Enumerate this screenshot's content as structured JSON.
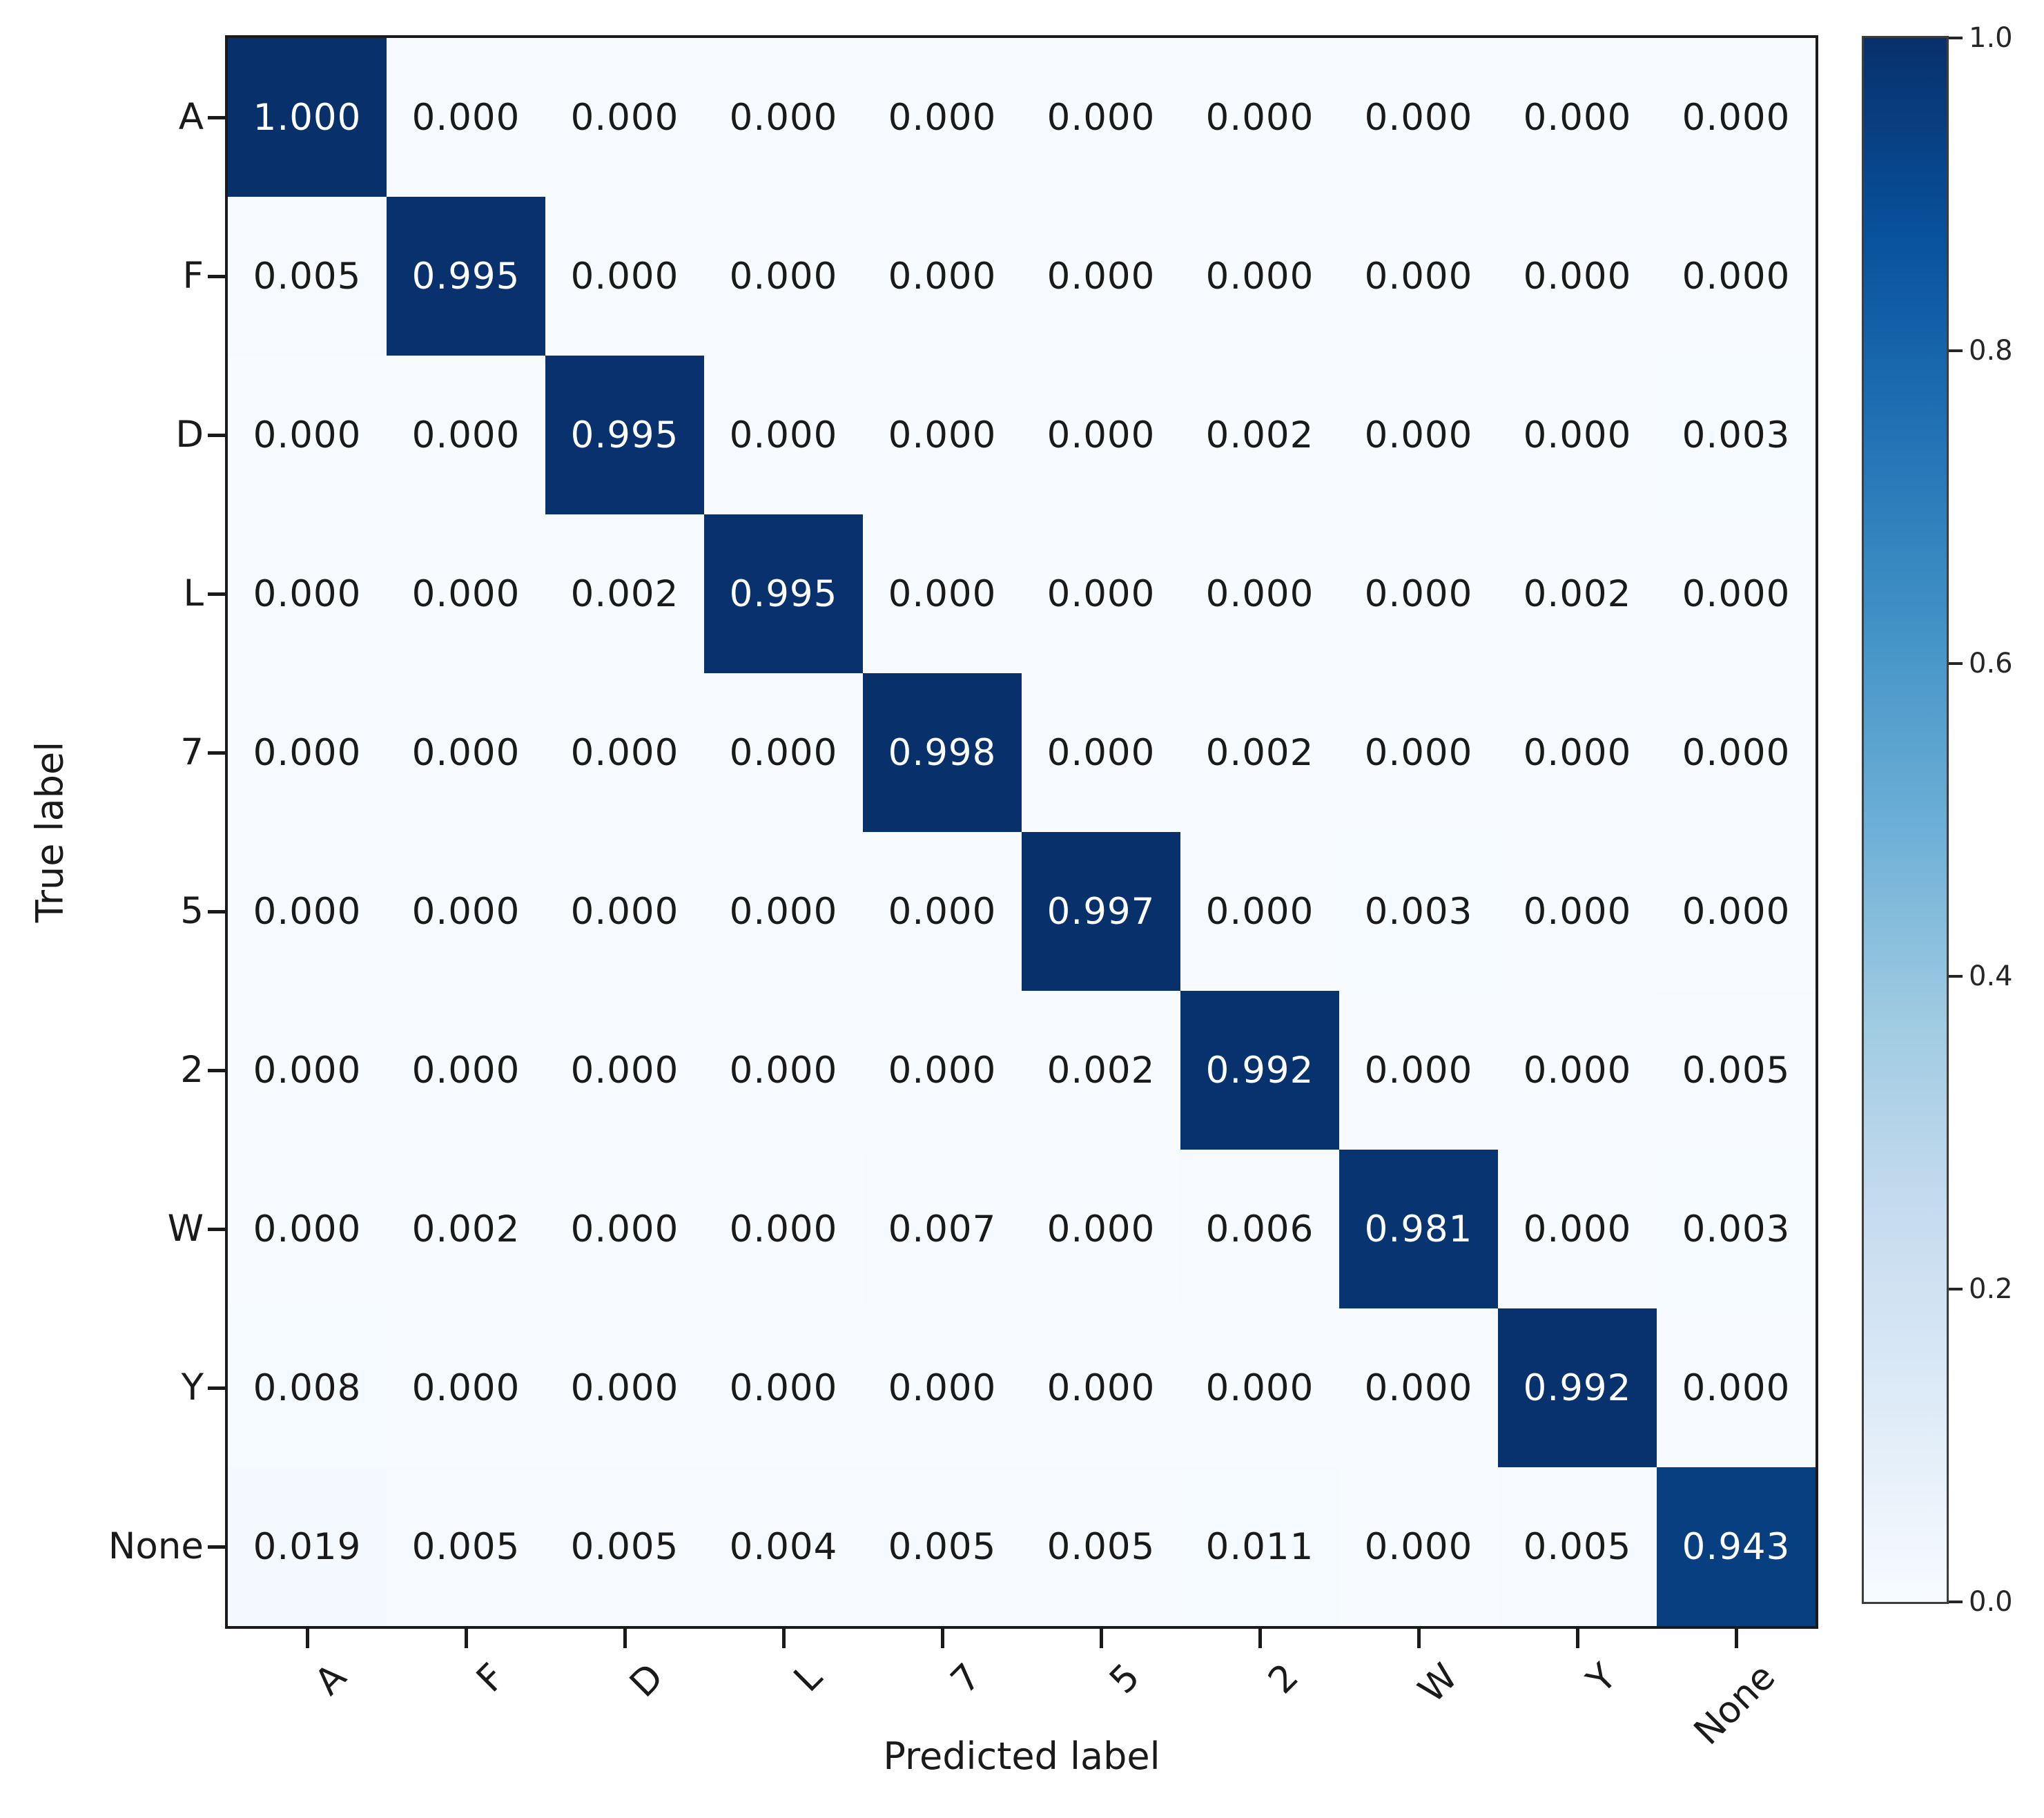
{
  "chart_data": {
    "type": "heatmap",
    "title": "",
    "xlabel": "Predicted label",
    "ylabel": "True label",
    "categories": [
      "A",
      "F",
      "D",
      "L",
      "7",
      "5",
      "2",
      "W",
      "Y",
      "None"
    ],
    "matrix": [
      [
        1.0,
        0.0,
        0.0,
        0.0,
        0.0,
        0.0,
        0.0,
        0.0,
        0.0,
        0.0
      ],
      [
        0.005,
        0.995,
        0.0,
        0.0,
        0.0,
        0.0,
        0.0,
        0.0,
        0.0,
        0.0
      ],
      [
        0.0,
        0.0,
        0.995,
        0.0,
        0.0,
        0.0,
        0.002,
        0.0,
        0.0,
        0.003
      ],
      [
        0.0,
        0.0,
        0.002,
        0.995,
        0.0,
        0.0,
        0.0,
        0.0,
        0.002,
        0.0
      ],
      [
        0.0,
        0.0,
        0.0,
        0.0,
        0.998,
        0.0,
        0.002,
        0.0,
        0.0,
        0.0
      ],
      [
        0.0,
        0.0,
        0.0,
        0.0,
        0.0,
        0.997,
        0.0,
        0.003,
        0.0,
        0.0
      ],
      [
        0.0,
        0.0,
        0.0,
        0.0,
        0.0,
        0.002,
        0.992,
        0.0,
        0.0,
        0.005
      ],
      [
        0.0,
        0.002,
        0.0,
        0.0,
        0.007,
        0.0,
        0.006,
        0.981,
        0.0,
        0.003
      ],
      [
        0.008,
        0.0,
        0.0,
        0.0,
        0.0,
        0.0,
        0.0,
        0.0,
        0.992,
        0.0
      ],
      [
        0.019,
        0.005,
        0.005,
        0.004,
        0.005,
        0.005,
        0.011,
        0.0,
        0.005,
        0.943
      ]
    ],
    "value_decimals": 3,
    "grid": false,
    "colorbar": {
      "cmap": "Blues",
      "vmin": 0.0,
      "vmax": 1.0,
      "tick_values": [
        1.0,
        0.8,
        0.6,
        0.4,
        0.2,
        0.0
      ],
      "tick_labels": [
        "1.0",
        "0.8",
        "0.6",
        "0.4",
        "0.2",
        "0.0"
      ],
      "position": "right",
      "gradient_stops": [
        {
          "t": 0.0,
          "color": "#f7fbff"
        },
        {
          "t": 0.125,
          "color": "#deebf7"
        },
        {
          "t": 0.25,
          "color": "#c6dbef"
        },
        {
          "t": 0.375,
          "color": "#9ecae1"
        },
        {
          "t": 0.5,
          "color": "#6baed6"
        },
        {
          "t": 0.625,
          "color": "#4292c6"
        },
        {
          "t": 0.75,
          "color": "#2171b5"
        },
        {
          "t": 0.875,
          "color": "#08519c"
        },
        {
          "t": 1.0,
          "color": "#08306b"
        }
      ]
    },
    "colors": {
      "cell_text_dark": "#1a1a1a",
      "cell_text_light": "#ffffff",
      "axis_text": "#1a1a1a",
      "frame": "#1a1a1a",
      "diag_fill": "#1d3f76",
      "background_fill": "#f7fbff"
    }
  }
}
